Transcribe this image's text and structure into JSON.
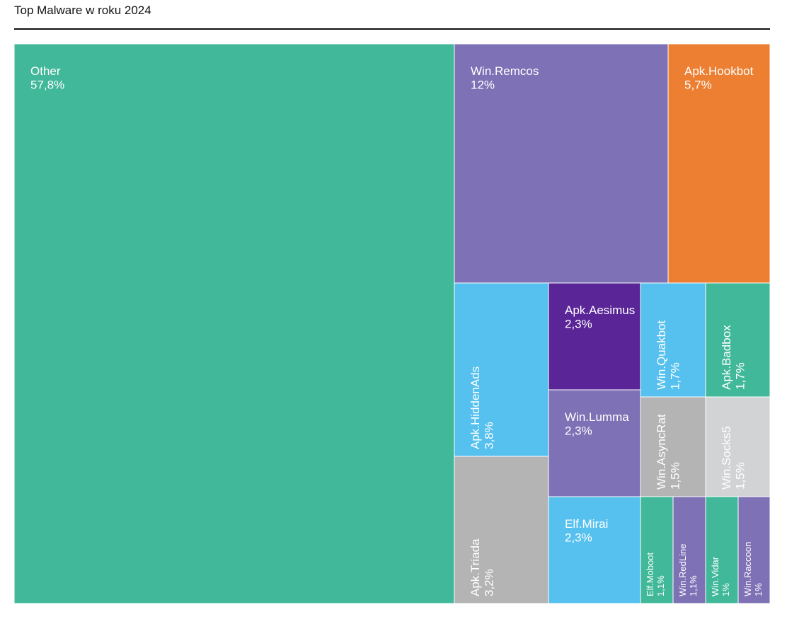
{
  "chart_data": {
    "type": "treemap",
    "title": "Top Malware w roku 2024",
    "items": [
      {
        "name": "Other",
        "value": 57.8,
        "label": "57,8%",
        "color": "#40b899"
      },
      {
        "name": "Win.Remcos",
        "value": 12.0,
        "label": "12%",
        "color": "#7e71b5"
      },
      {
        "name": "Apk.Hookbot",
        "value": 5.7,
        "label": "5,7%",
        "color": "#ec7f32"
      },
      {
        "name": "Apk.HiddenAds",
        "value": 3.8,
        "label": "3,8%",
        "color": "#56c0ee"
      },
      {
        "name": "Apk.Triada",
        "value": 3.2,
        "label": "3,2%",
        "color": "#b4b4b4"
      },
      {
        "name": "Apk.Aesimus",
        "value": 2.3,
        "label": "2,3%",
        "color": "#5a2597"
      },
      {
        "name": "Win.Lumma",
        "value": 2.3,
        "label": "2,3%",
        "color": "#7e71b5"
      },
      {
        "name": "Elf.Mirai",
        "value": 2.3,
        "label": "2,3%",
        "color": "#56c0ee"
      },
      {
        "name": "Win.Quakbot",
        "value": 1.7,
        "label": "1,7%",
        "color": "#56c0ee"
      },
      {
        "name": "Apk.Badbox",
        "value": 1.7,
        "label": "1,7%",
        "color": "#40b899"
      },
      {
        "name": "Win.AsyncRat",
        "value": 1.5,
        "label": "1,5%",
        "color": "#b4b4b4"
      },
      {
        "name": "Win.Socks5",
        "value": 1.5,
        "label": "1,5%",
        "color": "#d2d3d5"
      },
      {
        "name": "Elf.Moboot",
        "value": 1.1,
        "label": "1,1%",
        "color": "#40b899"
      },
      {
        "name": "Win.RedLine",
        "value": 1.1,
        "label": "1,1%",
        "color": "#7e71b5"
      },
      {
        "name": "Win.Vidar",
        "value": 1.0,
        "label": "1%",
        "color": "#40b899"
      },
      {
        "name": "Win.Raccoon",
        "value": 1.0,
        "label": "1%",
        "color": "#7e71b5"
      }
    ]
  }
}
